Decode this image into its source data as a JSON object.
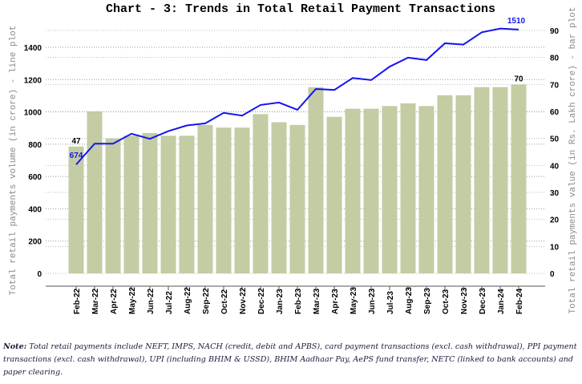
{
  "chart_data": {
    "type": "bar+line",
    "title": "Chart - 3: Trends in Total Retail Payment Transactions",
    "categories": [
      "Feb-22",
      "Mar-22",
      "Apr-22",
      "May-22",
      "Jun-22",
      "Jul-22",
      "Aug-22",
      "Sep-22",
      "Oct-22",
      "Nov-22",
      "Dec-22",
      "Jan-23",
      "Feb-23",
      "Mar-23",
      "Apr-23",
      "May-23",
      "Jun-23",
      "Jul-23",
      "Aug-23",
      "Sep-23",
      "Oct-23",
      "Nov-23",
      "Dec-23",
      "Jan-24",
      "Feb-24"
    ],
    "bar_series": {
      "axis": "right",
      "color": "#c3cca3",
      "values": [
        47,
        60,
        50,
        51,
        52,
        51,
        51,
        55,
        54,
        54,
        59,
        56,
        55,
        69,
        58,
        61,
        61,
        62,
        63,
        62,
        66,
        66,
        69,
        69,
        70
      ]
    },
    "line_series": {
      "axis": "left",
      "color": "#1515f0",
      "values": [
        674,
        803,
        803,
        865,
        833,
        881,
        916,
        929,
        994,
        977,
        1043,
        1058,
        1013,
        1142,
        1136,
        1210,
        1197,
        1280,
        1336,
        1321,
        1425,
        1417,
        1493,
        1516,
        1510
      ]
    },
    "bar_labels": {
      "first": "47",
      "last": "70"
    },
    "line_labels": {
      "first": "674",
      "last": "1510"
    },
    "ylabel_left": "Total retail payments volume (in crore) - line plot",
    "ylabel_right": "Total retail payments value (in Rs. Lakh crore) - bar plot",
    "ylim_left": [
      0,
      1400
    ],
    "yticks_left": [
      0,
      200,
      400,
      600,
      800,
      1000,
      1200,
      1400
    ],
    "ylim_right": [
      0,
      90
    ],
    "yticks_right": [
      0,
      10,
      20,
      30,
      40,
      50,
      60,
      70,
      80,
      90
    ],
    "grid": true
  },
  "note": {
    "label": "Note:",
    "text": " Total retail payments include NEFT, IMPS, NACH (credit, debit and APBS), card payment transactions (excl. cash withdrawal), PPI payment transactions (excl. cash withdrawal), UPI (including BHIM & USSD), BHIM Aadhaar Pay, AePS fund transfer, NETC (linked to bank accounts) and paper clearing."
  }
}
